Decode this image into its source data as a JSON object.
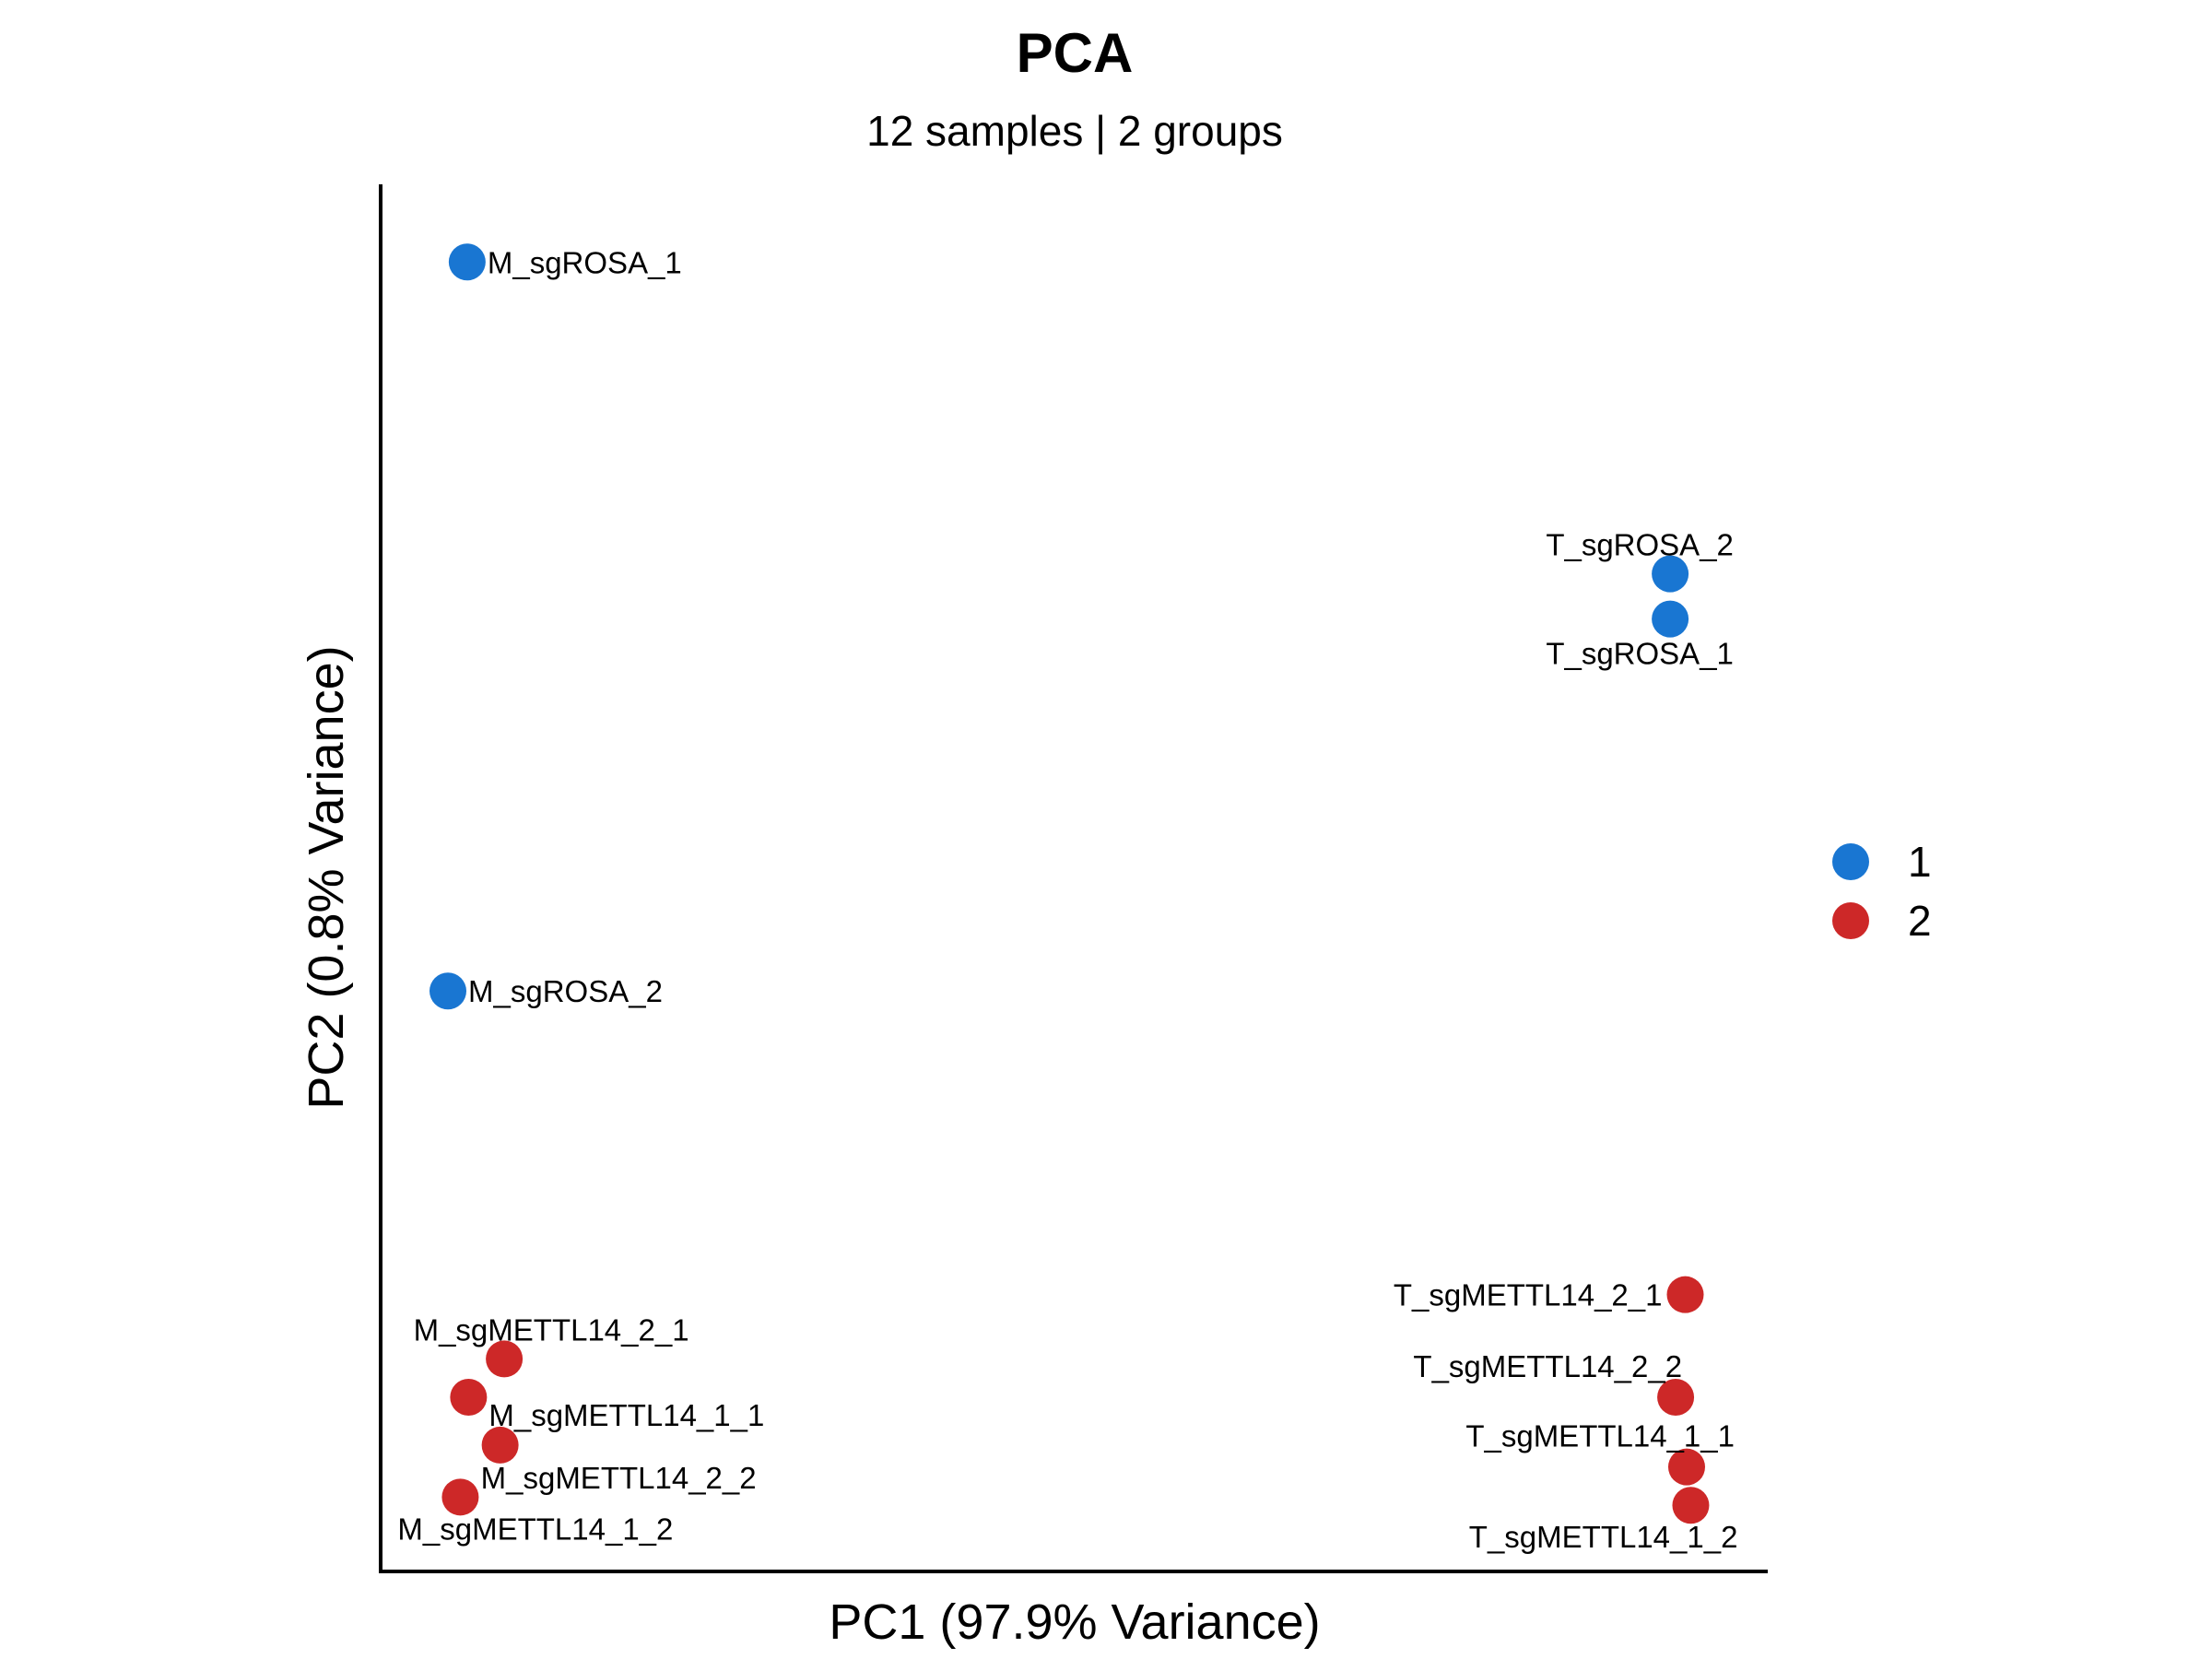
{
  "chart_data": {
    "type": "scatter",
    "title": "PCA",
    "subtitle": "12 samples | 2 groups",
    "xlabel": "PC1 (97.9% Variance)",
    "ylabel": "PC2 (0.8% Variance)",
    "xlim": [
      0,
      100
    ],
    "ylim": [
      0,
      100
    ],
    "units_note": "relative units estimated from the plot (no tick labels are shown)",
    "grid": false,
    "legend": {
      "placement": "right",
      "entries": [
        {
          "label": "1",
          "color": "#1976D2"
        },
        {
          "label": "2",
          "color": "#CD2828"
        }
      ]
    },
    "points": [
      {
        "label": "M_sgROSA_1",
        "group": "1",
        "x": 6.3,
        "y": 95.4
      },
      {
        "label": "T_sgROSA_2",
        "group": "1",
        "x": 93.9,
        "y": 72.6
      },
      {
        "label": "T_sgROSA_1",
        "group": "1",
        "x": 93.9,
        "y": 69.3
      },
      {
        "label": "M_sgROSA_2",
        "group": "1",
        "x": 4.9,
        "y": 42.1
      },
      {
        "label": "M_sgMETTL14_2_1",
        "group": "2",
        "x": 9.0,
        "y": 15.2
      },
      {
        "label": "M_sgMETTL14_1_1",
        "group": "2",
        "x": 6.4,
        "y": 12.4
      },
      {
        "label": "M_sgMETTL14_2_2",
        "group": "2",
        "x": 8.7,
        "y": 8.9
      },
      {
        "label": "M_sgMETTL14_1_2",
        "group": "2",
        "x": 5.8,
        "y": 5.1
      },
      {
        "label": "T_sgMETTL14_2_1",
        "group": "2",
        "x": 95.0,
        "y": 19.9
      },
      {
        "label": "T_sgMETTL14_2_2",
        "group": "2",
        "x": 94.3,
        "y": 12.4
      },
      {
        "label": "T_sgMETTL14_1_1",
        "group": "2",
        "x": 95.1,
        "y": 7.3
      },
      {
        "label": "T_sgMETTL14_1_2",
        "group": "2",
        "x": 95.4,
        "y": 4.5
      }
    ]
  }
}
